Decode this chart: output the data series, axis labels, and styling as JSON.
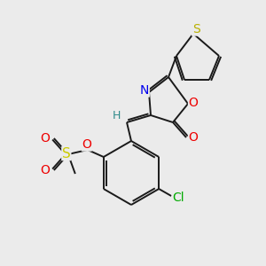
{
  "background_color": "#ebebeb",
  "bond_color": "#1a1a1a",
  "atom_colors": {
    "S_thiophene": "#b8b000",
    "S_sulfonate": "#cccc00",
    "N": "#0000ee",
    "O": "#ee0000",
    "Cl": "#00aa00",
    "H": "#2e8b8b"
  },
  "figsize": [
    3.0,
    3.0
  ],
  "dpi": 100,
  "bg": "#ebebeb"
}
